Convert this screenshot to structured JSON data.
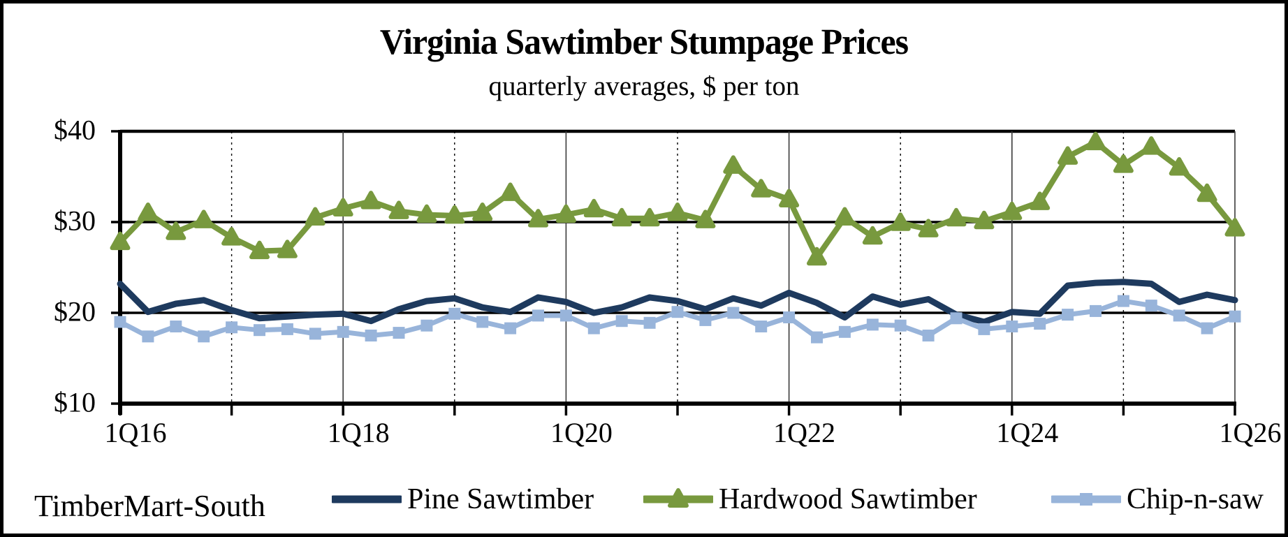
{
  "title": "Virginia Sawtimber Stumpage Prices",
  "subtitle": "quarterly averages, $ per ton",
  "source": "TimberMart-South",
  "chart_data": {
    "type": "line",
    "title": "Virginia Sawtimber Stumpage Prices",
    "subtitle": "quarterly averages, $ per ton",
    "ylim": [
      10,
      40
    ],
    "y_ticks": [
      40,
      30,
      20,
      10
    ],
    "y_tick_labels": [
      "$40",
      "$30",
      "$20",
      "$10"
    ],
    "x_tick_positions": [
      0,
      8,
      16,
      24,
      32,
      40
    ],
    "x_tick_labels": [
      "1Q16",
      "1Q18",
      "1Q20",
      "1Q22",
      "1Q24",
      "1Q26"
    ],
    "x_minor_positions": [
      4,
      12,
      20,
      28,
      36
    ],
    "legend_position": "bottom",
    "grid": "horizontal-solid, vertical yearly (solid even years, dotted odd years)",
    "x": [
      "1Q16",
      "2Q16",
      "3Q16",
      "4Q16",
      "1Q17",
      "2Q17",
      "3Q17",
      "4Q17",
      "1Q18",
      "2Q18",
      "3Q18",
      "4Q18",
      "1Q19",
      "2Q19",
      "3Q19",
      "4Q19",
      "1Q20",
      "2Q20",
      "3Q20",
      "4Q20",
      "1Q21",
      "2Q21",
      "3Q21",
      "4Q21",
      "1Q22",
      "2Q22",
      "3Q22",
      "4Q22",
      "1Q23",
      "2Q23",
      "3Q23",
      "4Q23",
      "1Q24",
      "2Q24",
      "3Q24",
      "4Q24",
      "1Q25",
      "2Q25",
      "3Q25",
      "4Q25",
      "1Q26"
    ],
    "series": [
      {
        "name": "Pine Sawtimber",
        "color": "#1e3a5e",
        "marker": "none",
        "line_width": 9,
        "values": [
          23.2,
          20.1,
          21.0,
          21.4,
          20.3,
          19.4,
          19.6,
          19.8,
          19.9,
          19.1,
          20.4,
          21.3,
          21.6,
          20.6,
          20.1,
          21.7,
          21.2,
          20.0,
          20.6,
          21.7,
          21.3,
          20.4,
          21.6,
          20.8,
          22.2,
          21.1,
          19.5,
          21.8,
          20.9,
          21.5,
          19.8,
          19.0,
          20.1,
          19.9,
          23.0,
          23.3,
          23.4,
          23.2,
          21.2,
          22.0,
          21.4
        ]
      },
      {
        "name": "Hardwood Sawtimber",
        "color": "#78993e",
        "marker": "triangle",
        "line_width": 8,
        "values": [
          27.8,
          31.0,
          28.9,
          30.2,
          28.3,
          26.8,
          26.9,
          30.5,
          31.5,
          32.3,
          31.2,
          30.8,
          30.7,
          31.0,
          33.2,
          30.3,
          30.8,
          31.4,
          30.4,
          30.4,
          31.0,
          30.2,
          36.2,
          33.6,
          32.5,
          26.1,
          30.5,
          28.4,
          29.9,
          29.2,
          30.4,
          30.1,
          31.1,
          32.2,
          37.2,
          38.8,
          36.3,
          38.3,
          36.0,
          33.1,
          29.3
        ]
      },
      {
        "name": "Chip-n-saw",
        "color": "#98b4da",
        "marker": "square",
        "line_width": 7,
        "values": [
          19.0,
          17.4,
          18.5,
          17.4,
          18.4,
          18.1,
          18.2,
          17.7,
          17.9,
          17.5,
          17.8,
          18.6,
          19.9,
          19.0,
          18.3,
          19.7,
          19.7,
          18.3,
          19.1,
          18.9,
          20.1,
          19.2,
          20.0,
          18.5,
          19.5,
          17.3,
          17.9,
          18.7,
          18.6,
          17.5,
          19.4,
          18.2,
          18.5,
          18.8,
          19.8,
          20.2,
          21.3,
          20.8,
          19.7,
          18.3,
          19.6
        ]
      }
    ]
  }
}
